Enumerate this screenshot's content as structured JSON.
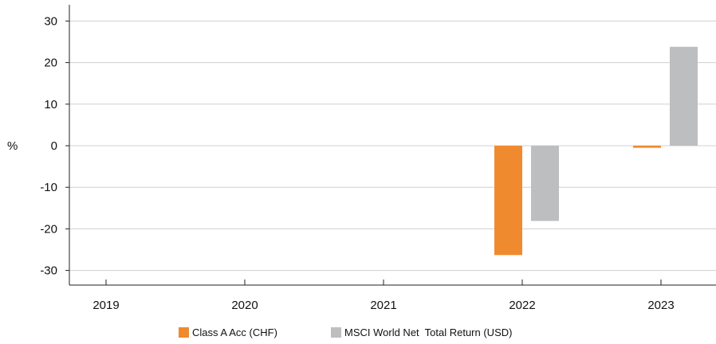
{
  "chart_data": {
    "type": "bar",
    "categories": [
      "2019",
      "2020",
      "2021",
      "2022",
      "2023"
    ],
    "series": [
      {
        "name": "Class A Acc (CHF)",
        "color": "#F08A2E",
        "values": [
          null,
          null,
          null,
          -26.3,
          -0.5
        ]
      },
      {
        "name": "MSCI World Net  Total Return (USD)",
        "color": "#BDBEC0",
        "values": [
          null,
          null,
          null,
          -18.1,
          23.8
        ]
      }
    ],
    "ylabel": "%",
    "ylim": [
      -34,
      34
    ],
    "yticks": [
      30,
      20,
      10,
      0,
      -10,
      -20,
      -30
    ],
    "grid": true,
    "legend": "bottom-center"
  }
}
